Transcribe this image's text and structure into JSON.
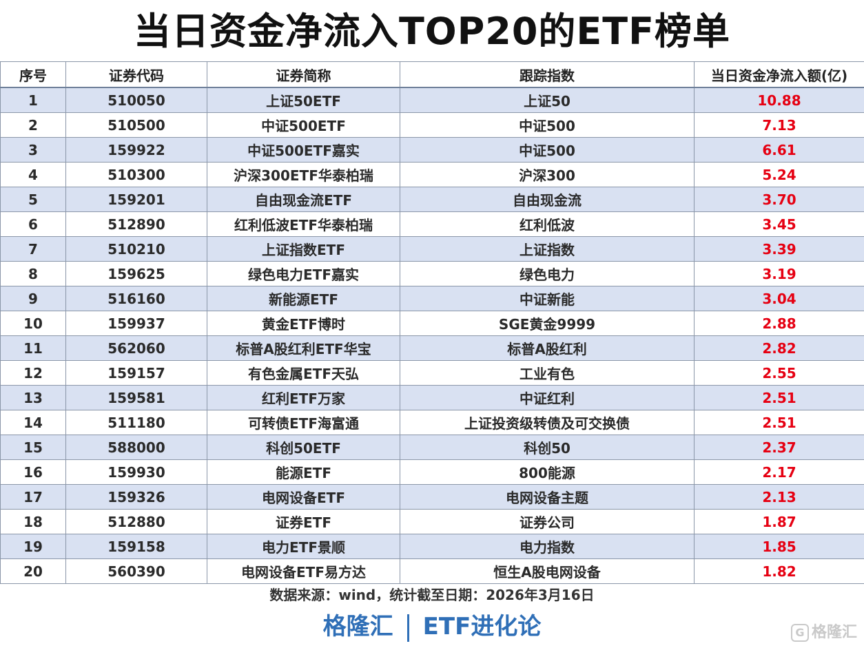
{
  "title": "当日资金净流入TOP20的ETF榜单",
  "columns": [
    "序号",
    "证券代码",
    "证券简称",
    "跟踪指数",
    "当日资金净流入额(亿)"
  ],
  "rows": [
    [
      "1",
      "510050",
      "上证50ETF",
      "上证50",
      "10.88"
    ],
    [
      "2",
      "510500",
      "中证500ETF",
      "中证500",
      "7.13"
    ],
    [
      "3",
      "159922",
      "中证500ETF嘉实",
      "中证500",
      "6.61"
    ],
    [
      "4",
      "510300",
      "沪深300ETF华泰柏瑞",
      "沪深300",
      "5.24"
    ],
    [
      "5",
      "159201",
      "自由现金流ETF",
      "自由现金流",
      "3.70"
    ],
    [
      "6",
      "512890",
      "红利低波ETF华泰柏瑞",
      "红利低波",
      "3.45"
    ],
    [
      "7",
      "510210",
      "上证指数ETF",
      "上证指数",
      "3.39"
    ],
    [
      "8",
      "159625",
      "绿色电力ETF嘉实",
      "绿色电力",
      "3.19"
    ],
    [
      "9",
      "516160",
      "新能源ETF",
      "中证新能",
      "3.04"
    ],
    [
      "10",
      "159937",
      "黄金ETF博时",
      "SGE黄金9999",
      "2.88"
    ],
    [
      "11",
      "562060",
      "标普A股红利ETF华宝",
      "标普A股红利",
      "2.82"
    ],
    [
      "12",
      "159157",
      "有色金属ETF天弘",
      "工业有色",
      "2.55"
    ],
    [
      "13",
      "159581",
      "红利ETF万家",
      "中证红利",
      "2.51"
    ],
    [
      "14",
      "511180",
      "可转债ETF海富通",
      "上证投资级转债及可交换债",
      "2.51"
    ],
    [
      "15",
      "588000",
      "科创50ETF",
      "科创50",
      "2.37"
    ],
    [
      "16",
      "159930",
      "能源ETF",
      "800能源",
      "2.17"
    ],
    [
      "17",
      "159326",
      "电网设备ETF",
      "电网设备主题",
      "2.13"
    ],
    [
      "18",
      "512880",
      "证券ETF",
      "证券公司",
      "1.87"
    ],
    [
      "19",
      "159158",
      "电力ETF景顺",
      "电力指数",
      "1.85"
    ],
    [
      "20",
      "560390",
      "电网设备ETF易方达",
      "恒生A股电网设备",
      "1.82"
    ]
  ],
  "source": "数据来源：wind，统计截至日期：2026年3月16日",
  "footer": {
    "brand": "格隆汇",
    "column": "ETF进化论"
  },
  "watermark": {
    "icon": "gelonghui-logo-icon",
    "text": "格隆汇"
  },
  "colors": {
    "header_row_alt": "#d9e1f2",
    "flow_value": "#e60012",
    "footer_blue": "#2f6fb7"
  }
}
